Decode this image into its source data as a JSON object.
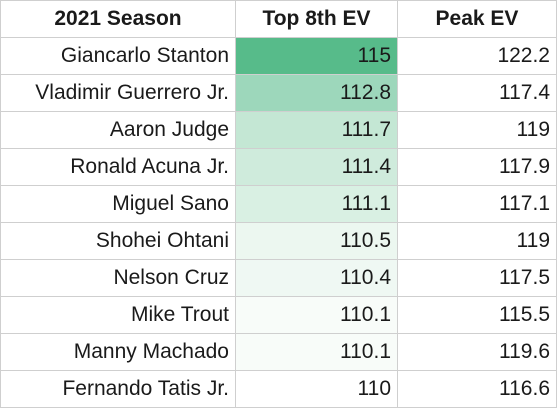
{
  "chart_data": {
    "type": "table",
    "columns": [
      "2021 Season",
      "Top 8th EV",
      "Peak EV"
    ],
    "rows": [
      {
        "player": "Giancarlo Stanton",
        "top8": "115",
        "peak": "122.2",
        "heat": "#57bb8a"
      },
      {
        "player": "Vladimir Guerrero Jr.",
        "top8": "112.8",
        "peak": "117.4",
        "heat": "#9dd7bb"
      },
      {
        "player": "Aaron Judge",
        "top8": "111.7",
        "peak": "119",
        "heat": "#c4e7d4"
      },
      {
        "player": "Ronald Acuna Jr.",
        "top8": "111.4",
        "peak": "117.9",
        "heat": "#cfebdc"
      },
      {
        "player": "Miguel Sano",
        "top8": "111.1",
        "peak": "117.1",
        "heat": "#d9f0e3"
      },
      {
        "player": "Shohei Ohtani",
        "top8": "110.5",
        "peak": "119",
        "heat": "#ecf7f0"
      },
      {
        "player": "Nelson Cruz",
        "top8": "110.4",
        "peak": "117.5",
        "heat": "#eff8f3"
      },
      {
        "player": "Mike Trout",
        "top8": "110.1",
        "peak": "115.5",
        "heat": "#f8fcf9"
      },
      {
        "player": "Manny Machado",
        "top8": "110.1",
        "peak": "119.6",
        "heat": "#f8fcf9"
      },
      {
        "player": "Fernando Tatis Jr.",
        "top8": "110",
        "peak": "116.6",
        "heat": "#ffffff"
      }
    ]
  }
}
